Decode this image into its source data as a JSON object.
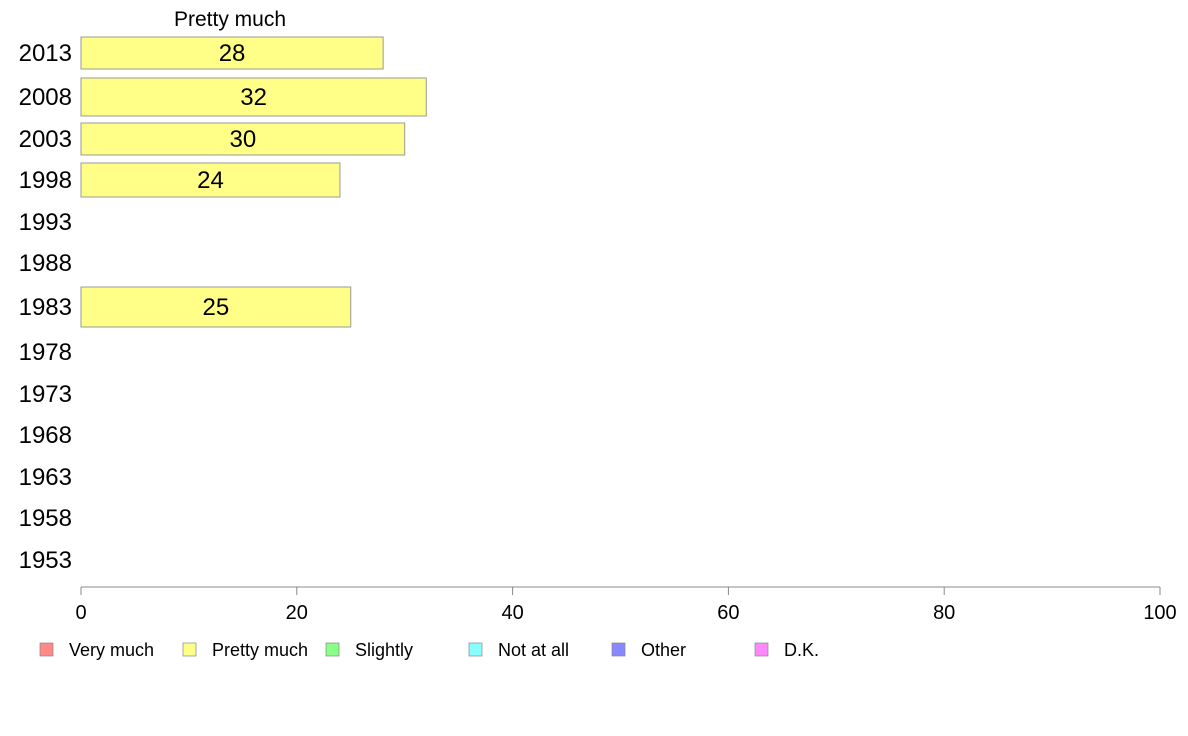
{
  "chart_data": {
    "type": "bar",
    "orientation": "horizontal",
    "title": "",
    "shown_series_title": "Pretty much",
    "categories": [
      "2013",
      "2008",
      "2003",
      "1998",
      "1993",
      "1988",
      "1983",
      "1978",
      "1973",
      "1968",
      "1963",
      "1958",
      "1953"
    ],
    "series": [
      {
        "name": "Pretty much",
        "color": "#ffff88",
        "values": [
          28,
          32,
          30,
          24,
          null,
          null,
          25,
          null,
          null,
          null,
          null,
          null,
          null
        ]
      }
    ],
    "xlim": [
      0,
      100
    ],
    "xticks": [
      0,
      20,
      40,
      60,
      80,
      100
    ],
    "grid": false,
    "legend_placement": "bottom",
    "legend": [
      {
        "label": "Very much",
        "color": "#ff8888"
      },
      {
        "label": "Pretty much",
        "color": "#ffff88"
      },
      {
        "label": "Slightly",
        "color": "#88ff88"
      },
      {
        "label": "Not at all",
        "color": "#88ffff"
      },
      {
        "label": "Other",
        "color": "#8888ff"
      },
      {
        "label": "D.K.",
        "color": "#ff88ff"
      }
    ]
  }
}
